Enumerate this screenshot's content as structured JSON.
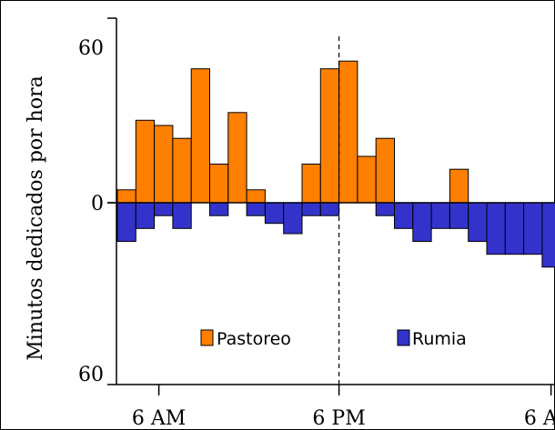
{
  "chart_data": {
    "type": "bar",
    "stacked_diverging": true,
    "ylabel": "Minutos dedicados por hora",
    "y_tick_labels": [
      "60",
      "0",
      "60"
    ],
    "ylim": [
      -60,
      60
    ],
    "x_tick_labels": [
      "6 AM",
      "6 PM",
      "6 AM"
    ],
    "hours": [
      6,
      7,
      8,
      9,
      10,
      11,
      12,
      13,
      14,
      15,
      16,
      17,
      18,
      19,
      20,
      21,
      22,
      23,
      0,
      1,
      2,
      3,
      4,
      5
    ],
    "series": [
      {
        "name": "Pastoreo",
        "color": "#ff7f00",
        "values": [
          5,
          32,
          30,
          25,
          52,
          15,
          35,
          5,
          0,
          0,
          15,
          52,
          55,
          18,
          25,
          0,
          0,
          0,
          13,
          0,
          0,
          0,
          0,
          0
        ]
      },
      {
        "name": "Rumia",
        "color": "#3333cc",
        "values": [
          -15,
          -10,
          -5,
          -10,
          0,
          -5,
          0,
          -5,
          -8,
          -12,
          -5,
          -5,
          0,
          0,
          -5,
          -10,
          -15,
          -10,
          -10,
          -15,
          -20,
          -20,
          -20,
          -25
        ]
      }
    ],
    "extra_bar": {
      "value": -10
    },
    "marker_line": {
      "at": "6 PM",
      "style": "dashed"
    },
    "legend": {
      "placement": "bottom-center",
      "entries": [
        "Pastoreo",
        "Rumia"
      ]
    },
    "grid": false
  }
}
